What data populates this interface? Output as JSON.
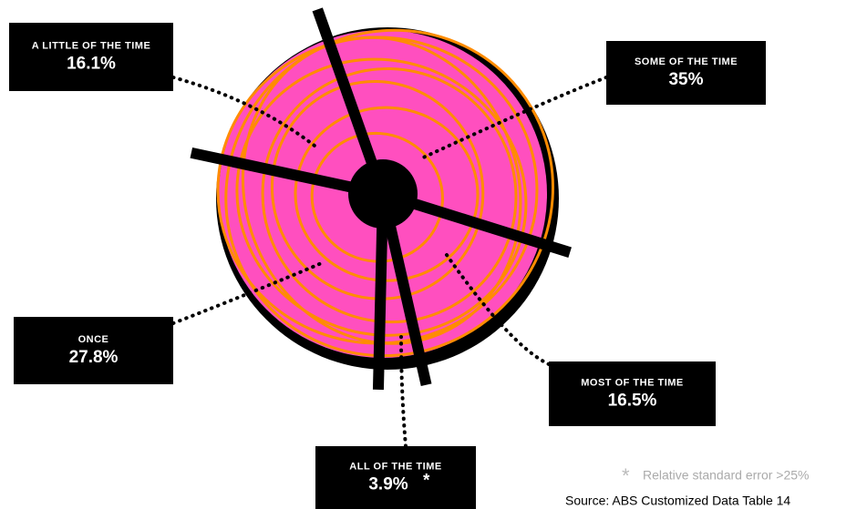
{
  "chart_data": {
    "type": "pie",
    "categories": [
      "SOME OF THE TIME",
      "MOST OF THE TIME",
      "ALL OF THE TIME",
      "ONCE",
      "A LITTLE OF THE TIME"
    ],
    "values": [
      35,
      16.5,
      3.9,
      27.8,
      16.1
    ],
    "value_labels": [
      "35%",
      "16.5%",
      "3.9%",
      "27.8%",
      "16.1%"
    ],
    "color": "#ff4fbf",
    "footnote": {
      "marker": "*",
      "text": "Relative standard error >25%"
    },
    "source": "Source: ABS Customized Data Table 14"
  }
}
